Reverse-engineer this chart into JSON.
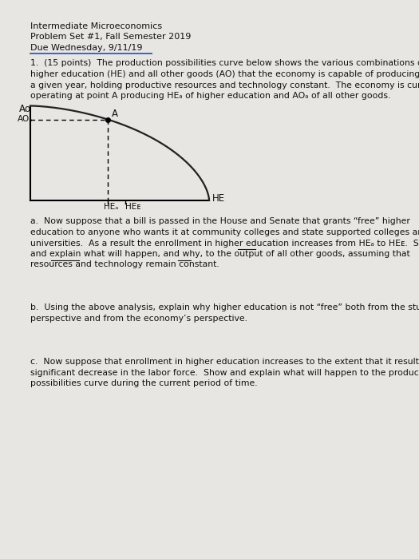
{
  "title_line1": "Intermediate Microeconomics",
  "title_line2": "Problem Set #1, Fall Semester 2019",
  "title_line3": "Due Wednesday, 9/11/19",
  "q1_text_lines": [
    "1.  (15 points)  The production possibilities curve below shows the various combinations of",
    "higher education (HE) and all other goods (AO) that the economy is capable of producing during",
    "a given year, holding productive resources and technology constant.  The economy is currently",
    "operating at point A producing HEₐ of higher education and AOₐ of all other goods."
  ],
  "part_a_lines": [
    "a.  Now suppose that a bill is passed in the House and Senate that grants “free” higher",
    "education to anyone who wants it at community colleges and state supported colleges and",
    "universities.  As a result the enrollment in higher education increases from HEₐ to HEᴇ.  Show",
    "and explain what will happen, and why, to the output of all other goods, assuming that",
    "resources and technology remain constant."
  ],
  "part_b_lines": [
    "b.  Using the above analysis, explain why higher education is not “free” both from the students’",
    "perspective and from the economy’s perspective."
  ],
  "part_c_lines": [
    "c.  Now suppose that enrollment in higher education increases to the extent that it results in a",
    "significant decrease in the labor force.  Show and explain what will happen to the production",
    "possibilities curve during the current period of time."
  ],
  "bg_color": "#e8e6e2",
  "text_color": "#111111",
  "header_color": "#111111",
  "curve_color": "#222222",
  "graph_bg": "#e0deda"
}
